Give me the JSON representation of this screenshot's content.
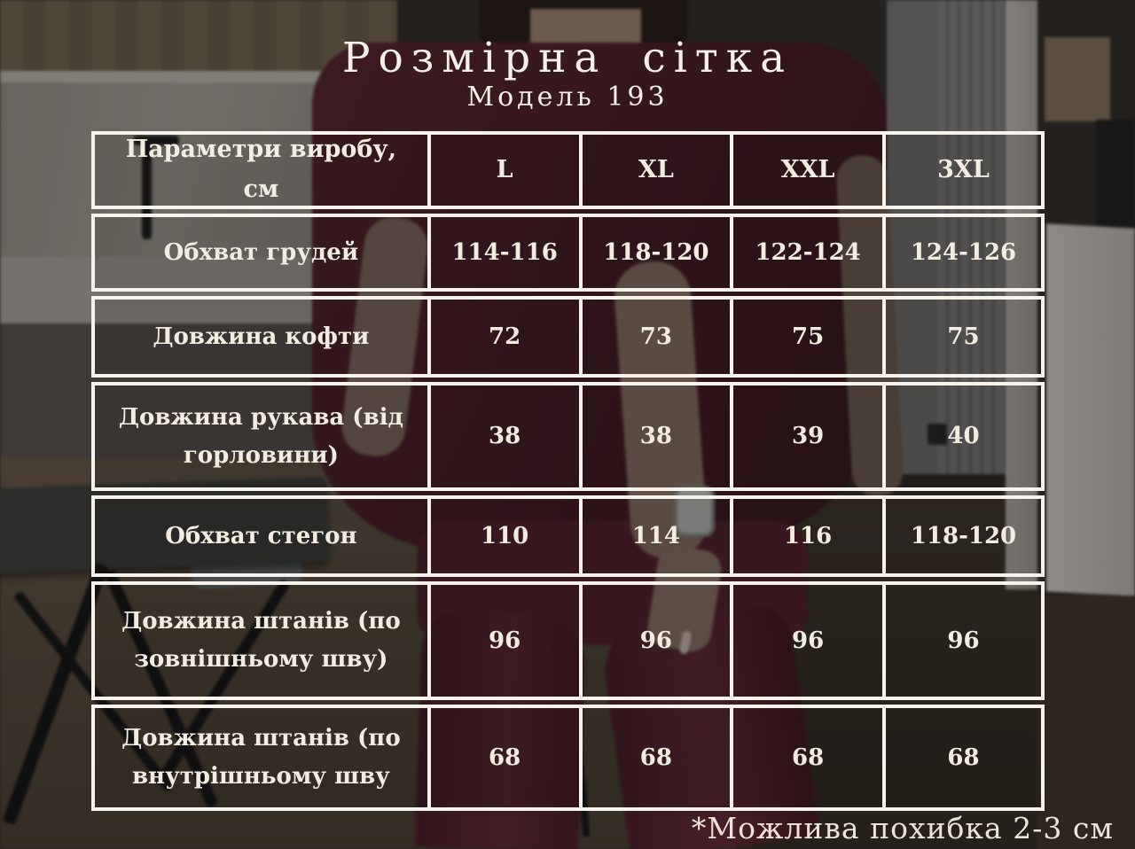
{
  "page": {
    "title": "Розмірна сітка",
    "subtitle": "Модель 193",
    "footnote": "*Можлива похибка 2-3 см"
  },
  "chart_data": {
    "type": "table",
    "columns": [
      "Параметри виробу, см",
      "L",
      "XL",
      "XXL",
      "3XL"
    ],
    "rows": [
      {
        "label": "Обхват грудей",
        "values": [
          "114-116",
          "118-120",
          "122-124",
          "124-126"
        ]
      },
      {
        "label": "Довжина кофти",
        "values": [
          "72",
          "73",
          "75",
          "75"
        ]
      },
      {
        "label": "Довжина рукава (від горловини)",
        "values": [
          "38",
          "38",
          "39",
          "40"
        ]
      },
      {
        "label": "Обхват стегон",
        "values": [
          "110",
          "114",
          "116",
          "118-120"
        ]
      },
      {
        "label": "Довжина штанів (по зовнішньому шву)",
        "values": [
          "96",
          "96",
          "96",
          "96"
        ]
      },
      {
        "label": "Довжина штанів (по внутрішньому шву",
        "values": [
          "68",
          "68",
          "68",
          "68"
        ]
      }
    ]
  },
  "colors": {
    "table_border": "#f7f3ec",
    "table_text": "#f2ece1",
    "title_text": "#f5f0e8",
    "shirt_burgundy": "#4a1d26",
    "pants_burgundy": "#5c2430"
  }
}
